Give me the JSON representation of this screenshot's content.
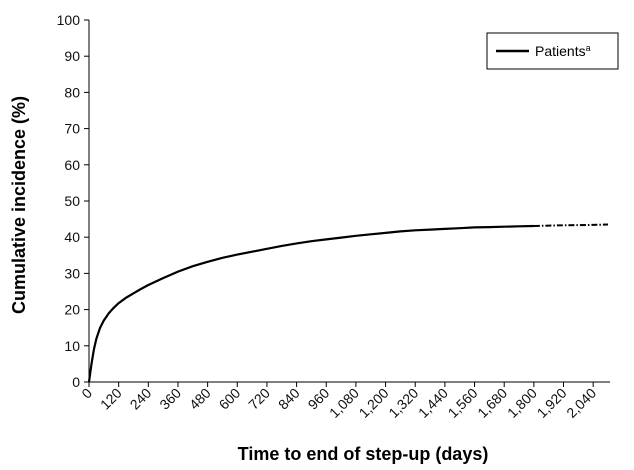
{
  "chart_data": {
    "type": "line",
    "title": "",
    "xlabel": "Time to end of step-up (days)",
    "ylabel": "Cumulative incidence (%)",
    "xlim": [
      0,
      2100
    ],
    "ylim": [
      0,
      100
    ],
    "grid": false,
    "legend_position": "top-right",
    "x_ticks": [
      0,
      120,
      240,
      360,
      480,
      600,
      720,
      840,
      960,
      1080,
      1200,
      1320,
      1440,
      1560,
      1680,
      1800,
      1920,
      2040
    ],
    "x_tick_labels": [
      "0",
      "120",
      "240",
      "360",
      "480",
      "600",
      "720",
      "840",
      "960",
      "1,080",
      "1,200",
      "1,320",
      "1,440",
      "1,560",
      "1,680",
      "1,800",
      "1,920",
      "2,040"
    ],
    "y_ticks": [
      0,
      10,
      20,
      30,
      40,
      50,
      60,
      70,
      80,
      90,
      100
    ],
    "y_tick_labels": [
      "0",
      "10",
      "20",
      "30",
      "40",
      "50",
      "60",
      "70",
      "80",
      "90",
      "100"
    ],
    "series": [
      {
        "name": "Patients",
        "name_superscript": "a",
        "color": "#000000",
        "solid_until": 1850,
        "x": [
          0,
          10,
          20,
          30,
          45,
          60,
          80,
          100,
          120,
          150,
          180,
          210,
          240,
          300,
          360,
          420,
          480,
          540,
          600,
          660,
          720,
          780,
          840,
          900,
          960,
          1020,
          1080,
          1140,
          1200,
          1260,
          1320,
          1380,
          1440,
          1500,
          1560,
          1620,
          1680,
          1740,
          1800,
          1860,
          1920,
          1980,
          2040,
          2100
        ],
        "y": [
          0,
          5,
          9,
          12,
          15,
          17,
          19,
          20.5,
          21.8,
          23.3,
          24.5,
          25.7,
          26.8,
          28.7,
          30.5,
          32.0,
          33.2,
          34.3,
          35.2,
          36.0,
          36.8,
          37.6,
          38.3,
          38.9,
          39.4,
          39.9,
          40.4,
          40.8,
          41.2,
          41.6,
          41.9,
          42.1,
          42.3,
          42.5,
          42.7,
          42.8,
          42.9,
          43.0,
          43.1,
          43.2,
          43.3,
          43.35,
          43.4,
          43.5
        ]
      }
    ]
  }
}
